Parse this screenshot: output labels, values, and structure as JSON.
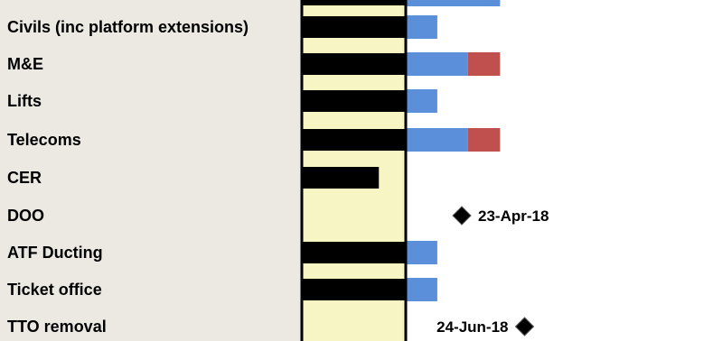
{
  "chart_data": {
    "type": "gantt",
    "colors": {
      "label_bg": "#ece9e2",
      "column_bg": "#f7f5c4",
      "status_bar": "#000000",
      "planned": "#5b8fd9",
      "overrun": "#c0504d",
      "milestone": "#000000"
    },
    "rows": [
      {
        "task": "",
        "status_fill": 1,
        "planned": [
          0.0,
          0.305
        ],
        "overrun": null,
        "milestone": null
      },
      {
        "task": "Civils (inc platform extensions)",
        "status_fill": 1,
        "planned": [
          0.0,
          0.1
        ],
        "overrun": null,
        "milestone": null
      },
      {
        "task": "M&E",
        "status_fill": 1,
        "planned": [
          0.0,
          0.2
        ],
        "overrun": [
          0.2,
          0.305
        ],
        "milestone": null
      },
      {
        "task": "Lifts",
        "status_fill": 1,
        "planned": [
          0.0,
          0.1
        ],
        "overrun": null,
        "milestone": null
      },
      {
        "task": "Telecoms",
        "status_fill": 1,
        "planned": [
          0.0,
          0.2
        ],
        "overrun": [
          0.2,
          0.305
        ],
        "milestone": null
      },
      {
        "task": "CER",
        "status_fill": 0.75,
        "planned": null,
        "overrun": null,
        "milestone": null
      },
      {
        "task": "DOO",
        "status_fill": 0,
        "planned": null,
        "overrun": null,
        "milestone": {
          "label": "23-Apr-18",
          "at": 0.18,
          "label_side": "right"
        }
      },
      {
        "task": "ATF Ducting",
        "status_fill": 1,
        "planned": [
          0.0,
          0.1
        ],
        "overrun": null,
        "milestone": null
      },
      {
        "task": "Ticket office",
        "status_fill": 1,
        "planned": [
          0.0,
          0.1
        ],
        "overrun": null,
        "milestone": null
      },
      {
        "task": "TTO removal",
        "status_fill": 0,
        "planned": null,
        "overrun": null,
        "milestone": {
          "label": "24-Jun-18",
          "at": 0.385,
          "label_side": "left"
        }
      }
    ]
  }
}
